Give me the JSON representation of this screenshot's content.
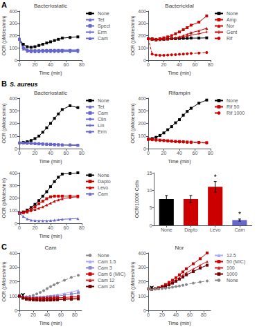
{
  "chart_data": [
    {
      "type": "line",
      "title": "Bacteriostatic",
      "xlabel": "Time (min)",
      "ylabel": "OCR (pMoles/min)",
      "x": [
        0,
        5,
        10,
        15,
        20,
        25,
        30,
        35,
        40,
        45,
        50,
        55,
        65,
        75
      ],
      "xlim": [
        0,
        80
      ],
      "xticks": [
        0,
        20,
        40,
        60,
        80
      ],
      "ylim": [
        0,
        400
      ],
      "yticks": [
        0,
        100,
        200,
        300,
        400
      ],
      "grid": false,
      "legend": "right",
      "annotations": [
        {
          "text": "A"
        }
      ],
      "series": [
        {
          "name": "None",
          "color": "#000000",
          "marker": "square",
          "line_style": "solid",
          "values": [
            170,
            130,
            110,
            105,
            110,
            120,
            130,
            140,
            150,
            160,
            170,
            180,
            185,
            190
          ]
        },
        {
          "name": "Tet",
          "color": "#6666cc",
          "marker": "triangle",
          "line_style": "solid",
          "values": [
            170,
            110,
            85,
            80,
            80,
            80,
            82,
            83,
            82,
            83,
            84,
            85,
            84,
            85
          ]
        },
        {
          "name": "Spect",
          "color": "#6666cc",
          "marker": "square",
          "line_style": "solid",
          "values": [
            170,
            100,
            82,
            78,
            78,
            78,
            80,
            80,
            80,
            80,
            80,
            80,
            80,
            80
          ]
        },
        {
          "name": "Erm",
          "color": "#6666cc",
          "marker": "plus",
          "line_style": "solid",
          "values": [
            170,
            95,
            78,
            75,
            75,
            75,
            76,
            76,
            76,
            76,
            76,
            76,
            76,
            76
          ]
        },
        {
          "name": "Cam",
          "color": "#6666cc",
          "marker": "triangle",
          "line_style": "solid",
          "values": [
            170,
            90,
            72,
            68,
            68,
            68,
            70,
            70,
            70,
            70,
            70,
            70,
            70,
            70
          ]
        }
      ]
    },
    {
      "type": "line",
      "title": "Bactericidal",
      "xlabel": "Time (min)",
      "ylabel": "OCR (pMoles/min)",
      "x": [
        0,
        5,
        10,
        15,
        20,
        25,
        30,
        35,
        40,
        45,
        50,
        55,
        65,
        75
      ],
      "xlim": [
        0,
        80
      ],
      "xticks": [
        0,
        20,
        40,
        60,
        80
      ],
      "ylim": [
        0,
        400
      ],
      "yticks": [
        0,
        100,
        200,
        300,
        400
      ],
      "grid": false,
      "legend": "right",
      "series": [
        {
          "name": "None",
          "color": "#000000",
          "marker": "square",
          "line_style": "solid",
          "values": [
            175,
            170,
            165,
            168,
            170,
            172,
            175,
            175,
            177,
            178,
            178,
            180,
            180,
            182
          ]
        },
        {
          "name": "Amp",
          "color": "#cc0000",
          "marker": "square",
          "line_style": "solid",
          "values": [
            175,
            175,
            170,
            175,
            182,
            190,
            200,
            215,
            230,
            248,
            265,
            285,
            310,
            360
          ]
        },
        {
          "name": "Nor",
          "color": "#cc0000",
          "marker": "triangle",
          "line_style": "solid",
          "values": [
            175,
            172,
            168,
            170,
            172,
            175,
            178,
            182,
            190,
            200,
            210,
            225,
            240,
            260
          ]
        },
        {
          "name": "Gent",
          "color": "#cc0000",
          "marker": "plus",
          "line_style": "solid",
          "values": [
            175,
            170,
            165,
            168,
            170,
            172,
            175,
            178,
            182,
            188,
            195,
            205,
            215,
            230
          ]
        },
        {
          "name": "Rif",
          "color": "#cc0000",
          "marker": "circle",
          "line_style": "dashed",
          "values": [
            175,
            50,
            42,
            40,
            40,
            42,
            44,
            46,
            48,
            50,
            52,
            55,
            58,
            62
          ]
        }
      ]
    },
    {
      "type": "line",
      "title": "Bacteriostatic",
      "xlabel": "Time (min)",
      "ylabel": "OCR (pMoles/min)",
      "x": [
        0,
        5,
        10,
        15,
        20,
        25,
        30,
        35,
        40,
        45,
        50,
        55,
        65,
        75
      ],
      "xlim": [
        0,
        80
      ],
      "xticks": [
        0,
        20,
        40,
        60,
        80
      ],
      "ylim": [
        0,
        400
      ],
      "yticks": [
        0,
        100,
        200,
        300,
        400
      ],
      "grid": false,
      "legend": "right",
      "annotations": [
        {
          "text": "B"
        },
        {
          "text": "S. aureus"
        }
      ],
      "series": [
        {
          "name": "None",
          "color": "#000000",
          "marker": "square",
          "line_style": "solid",
          "values": [
            45,
            50,
            55,
            65,
            80,
            100,
            130,
            165,
            200,
            240,
            275,
            310,
            340,
            325
          ]
        },
        {
          "name": "Tet",
          "color": "#6666cc",
          "marker": "triangle",
          "line_style": "solid",
          "values": [
            45,
            45,
            45,
            45,
            42,
            40,
            38,
            36,
            35,
            33,
            32,
            30,
            30,
            28
          ]
        },
        {
          "name": "Cam",
          "color": "#6666cc",
          "marker": "square",
          "line_style": "solid",
          "values": [
            45,
            45,
            43,
            43,
            41,
            40,
            38,
            36,
            35,
            33,
            32,
            30,
            30,
            28
          ]
        },
        {
          "name": "Clin",
          "color": "#6666cc",
          "marker": "diamond",
          "line_style": "solid",
          "values": [
            45,
            44,
            43,
            43,
            41,
            39,
            37,
            36,
            34,
            32,
            31,
            30,
            29,
            27
          ]
        },
        {
          "name": "Lin",
          "color": "#6666cc",
          "marker": "plus",
          "line_style": "solid",
          "values": [
            45,
            44,
            43,
            42,
            41,
            39,
            37,
            35,
            34,
            32,
            31,
            30,
            29,
            27
          ]
        },
        {
          "name": "Erm",
          "color": "#6666cc",
          "marker": "triangle",
          "line_style": "solid",
          "values": [
            45,
            44,
            43,
            42,
            40,
            38,
            36,
            35,
            33,
            31,
            30,
            29,
            28,
            26
          ]
        }
      ]
    },
    {
      "type": "line",
      "title": "Rifampin",
      "xlabel": "Time (min)",
      "ylabel": "OCR (pMoles/min)",
      "x": [
        0,
        5,
        10,
        15,
        20,
        25,
        30,
        35,
        40,
        45,
        50,
        55,
        65,
        75
      ],
      "xlim": [
        0,
        80
      ],
      "xticks": [
        0,
        20,
        40,
        60,
        80
      ],
      "ylim": [
        0,
        400
      ],
      "yticks": [
        0,
        100,
        200,
        300,
        400
      ],
      "grid": false,
      "legend": "right",
      "series": [
        {
          "name": "None",
          "color": "#000000",
          "marker": "square",
          "line_style": "solid",
          "values": [
            75,
            80,
            90,
            105,
            125,
            150,
            175,
            205,
            230,
            265,
            295,
            320,
            360,
            385
          ]
        },
        {
          "name": "Rif 50",
          "color": "#cc0000",
          "marker": "square",
          "line_style": "solid",
          "values": [
            75,
            72,
            70,
            68,
            65,
            63,
            60,
            58,
            57,
            55,
            53,
            52,
            50,
            48
          ]
        },
        {
          "name": "Rif 1000",
          "color": "#cc0000",
          "marker": "circle",
          "line_style": "dashed",
          "values": [
            75,
            70,
            68,
            65,
            63,
            60,
            58,
            55,
            53,
            52,
            50,
            49,
            47,
            45
          ]
        }
      ]
    },
    {
      "type": "line",
      "xlabel": "Time (min)",
      "ylabel": "OCR (pMoles/min)",
      "x": [
        0,
        5,
        10,
        15,
        20,
        25,
        30,
        35,
        40,
        45,
        50,
        55,
        65,
        75
      ],
      "xlim": [
        0,
        80
      ],
      "xticks": [
        0,
        20,
        40,
        60,
        80
      ],
      "ylim": [
        0,
        400
      ],
      "yticks": [
        0,
        100,
        200,
        300,
        400
      ],
      "grid": false,
      "legend": "right",
      "series": [
        {
          "name": "None",
          "color": "#000000",
          "marker": "square",
          "line_style": "solid",
          "values": [
            80,
            90,
            105,
            125,
            150,
            180,
            215,
            250,
            290,
            330,
            365,
            390,
            395,
            400
          ]
        },
        {
          "name": "Dapto",
          "color": "#cc0000",
          "marker": "square",
          "line_style": "solid",
          "values": [
            80,
            85,
            95,
            110,
            130,
            155,
            175,
            195,
            210,
            215,
            215,
            215,
            215,
            215
          ]
        },
        {
          "name": "Levo",
          "color": "#cc0000",
          "marker": "triangle",
          "line_style": "solid",
          "values": [
            80,
            85,
            90,
            100,
            110,
            120,
            130,
            145,
            160,
            175,
            185,
            195,
            205,
            210
          ]
        },
        {
          "name": "Cam",
          "color": "#6666cc",
          "marker": "triangle",
          "line_style": "solid",
          "values": [
            80,
            55,
            35,
            25,
            22,
            20,
            20,
            20,
            22,
            25,
            28,
            32,
            35,
            38
          ]
        }
      ]
    },
    {
      "type": "bar",
      "ylabel": "OCR/10000 Cells",
      "categories": [
        "None",
        "Dapto",
        "Levo",
        "Cam"
      ],
      "values": [
        7.5,
        7.5,
        11.0,
        1.5
      ],
      "errors": [
        1.0,
        1.0,
        1.5,
        0.3
      ],
      "colors": [
        "#000000",
        "#cc0000",
        "#cc0000",
        "#6666cc"
      ],
      "ylim": [
        0,
        15
      ],
      "yticks": [
        0,
        5,
        10,
        15
      ],
      "grid": false,
      "annotations": [
        {
          "text": "*",
          "category": "Levo"
        },
        {
          "text": "*",
          "category": "Cam"
        }
      ]
    },
    {
      "type": "line",
      "title": "Cam",
      "xlabel": "Time (min)",
      "ylabel": "OCR (pMoles/min)",
      "x": [
        0,
        5,
        10,
        15,
        20,
        25,
        30,
        35,
        40,
        45,
        50,
        55,
        65,
        75,
        85
      ],
      "xlim": [
        0,
        90
      ],
      "xticks": [
        0,
        20,
        40,
        60,
        80
      ],
      "ylim": [
        0,
        400
      ],
      "yticks": [
        0,
        100,
        200,
        300,
        400
      ],
      "grid": false,
      "legend": "right",
      "annotations": [
        {
          "text": "C"
        },
        {
          "arrow_x": 5,
          "arrow_from": 108,
          "arrow_to": 98
        }
      ],
      "series": [
        {
          "name": "None",
          "color": "#888888",
          "marker": "circle",
          "line_style": "dashed",
          "values": [
            100,
            95,
            95,
            98,
            105,
            115,
            125,
            138,
            152,
            165,
            178,
            190,
            210,
            230,
            245
          ]
        },
        {
          "name": "Cam 1.5",
          "color": "#aaaaff",
          "marker": "triangle",
          "line_style": "solid",
          "values": [
            100,
            95,
            93,
            92,
            92,
            94,
            96,
            98,
            100,
            103,
            106,
            110,
            118,
            128,
            140
          ]
        },
        {
          "name": "Cam 3",
          "color": "#8888cc",
          "marker": "square",
          "line_style": "solid",
          "values": [
            100,
            93,
            90,
            89,
            88,
            89,
            90,
            91,
            93,
            95,
            97,
            100,
            106,
            114,
            122
          ]
        },
        {
          "name": "Cam 6 (MIC)",
          "color": "#cc0000",
          "marker": "square",
          "line_style": "solid",
          "values": [
            100,
            90,
            86,
            84,
            83,
            83,
            83,
            84,
            85,
            86,
            87,
            88,
            90,
            93,
            96
          ]
        },
        {
          "name": "Cam 12",
          "color": "#cc2222",
          "marker": "triangle",
          "line_style": "solid",
          "values": [
            100,
            88,
            82,
            80,
            78,
            78,
            78,
            78,
            79,
            80,
            80,
            81,
            83,
            85,
            87
          ]
        },
        {
          "name": "Cam 24",
          "color": "#770000",
          "marker": "square",
          "line_style": "solid",
          "values": [
            100,
            85,
            78,
            75,
            73,
            72,
            71,
            71,
            72,
            72,
            73,
            74,
            76,
            78,
            80
          ]
        }
      ]
    },
    {
      "type": "line",
      "title": "Nor",
      "xlabel": "Time (min)",
      "ylabel": "OCR (pMoles/min)",
      "x": [
        0,
        5,
        10,
        15,
        20,
        25,
        30,
        35,
        40,
        45,
        50,
        55,
        65,
        75,
        85
      ],
      "xlim": [
        0,
        90
      ],
      "xticks": [
        0,
        20,
        40,
        60,
        80
      ],
      "ylim": [
        0,
        400
      ],
      "yticks": [
        0,
        100,
        200,
        300,
        400
      ],
      "grid": false,
      "legend": "right",
      "annotations": [
        {
          "arrow_x": 5,
          "arrow_from": 158,
          "arrow_to": 148
        }
      ],
      "series": [
        {
          "name": "12.5",
          "color": "#aaaaff",
          "marker": "triangle",
          "line_style": "solid",
          "values": [
            150,
            148,
            150,
            155,
            162,
            170,
            180,
            192,
            205,
            218,
            232,
            248,
            270,
            295,
            315
          ]
        },
        {
          "name": "50 (MIC)",
          "color": "#cc0000",
          "marker": "square",
          "line_style": "solid",
          "values": [
            150,
            148,
            152,
            158,
            168,
            180,
            195,
            210,
            228,
            248,
            268,
            290,
            325,
            360,
            400
          ]
        },
        {
          "name": "100",
          "color": "#cc2222",
          "marker": "triangle",
          "line_style": "solid",
          "values": [
            150,
            148,
            150,
            155,
            163,
            173,
            185,
            198,
            213,
            228,
            245,
            262,
            288,
            315,
            340
          ]
        },
        {
          "name": "1000",
          "color": "#770000",
          "marker": "square",
          "line_style": "solid",
          "values": [
            150,
            148,
            150,
            154,
            160,
            168,
            178,
            190,
            203,
            218,
            233,
            248,
            270,
            295,
            315
          ]
        },
        {
          "name": "None",
          "color": "#888888",
          "marker": "circle",
          "line_style": "dashed",
          "values": [
            150,
            148,
            148,
            150,
            152,
            155,
            158,
            162,
            166,
            170,
            175,
            180,
            190,
            198,
            205
          ]
        }
      ]
    }
  ]
}
